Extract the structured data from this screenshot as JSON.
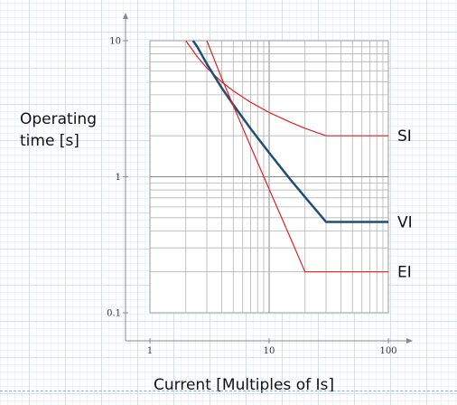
{
  "chart_data": {
    "type": "line",
    "xscale": "log",
    "yscale": "log",
    "xlim": [
      1,
      100
    ],
    "ylim": [
      0.1,
      10
    ],
    "xticks": [
      1,
      10,
      100
    ],
    "yticks": [
      0.1,
      1,
      10
    ],
    "xtick_labels": [
      "1",
      "10",
      "100"
    ],
    "ytick_labels": [
      "0.1",
      "1",
      "10"
    ],
    "xlabel": "Current [Multiples of Is]",
    "ylabel": [
      "Operating",
      "time [s]"
    ],
    "grid": true,
    "series": [
      {
        "name": "SI",
        "color": "#e02020",
        "width": 1.2,
        "x": [
          2,
          2.5,
          3,
          4,
          5,
          7,
          10,
          15,
          20,
          30,
          100
        ],
        "y": [
          10,
          7.6,
          6.3,
          4.98,
          4.28,
          3.52,
          2.97,
          2.52,
          2.27,
          2.0,
          2.0
        ]
      },
      {
        "name": "VI",
        "color": "#1f4e79",
        "width": 2.5,
        "x": [
          2.3,
          2.5,
          3,
          4,
          5,
          7,
          10,
          15,
          20,
          30,
          100
        ],
        "y": [
          10,
          9.0,
          6.75,
          4.5,
          3.38,
          2.25,
          1.5,
          0.96,
          0.71,
          0.465,
          0.465
        ]
      },
      {
        "name": "EI",
        "color": "#e02020",
        "width": 1.2,
        "x": [
          3,
          4,
          5,
          7,
          10,
          15,
          20,
          100
        ],
        "y": [
          10,
          5.3,
          3.33,
          1.67,
          0.81,
          0.36,
          0.2,
          0.2
        ]
      }
    ]
  }
}
